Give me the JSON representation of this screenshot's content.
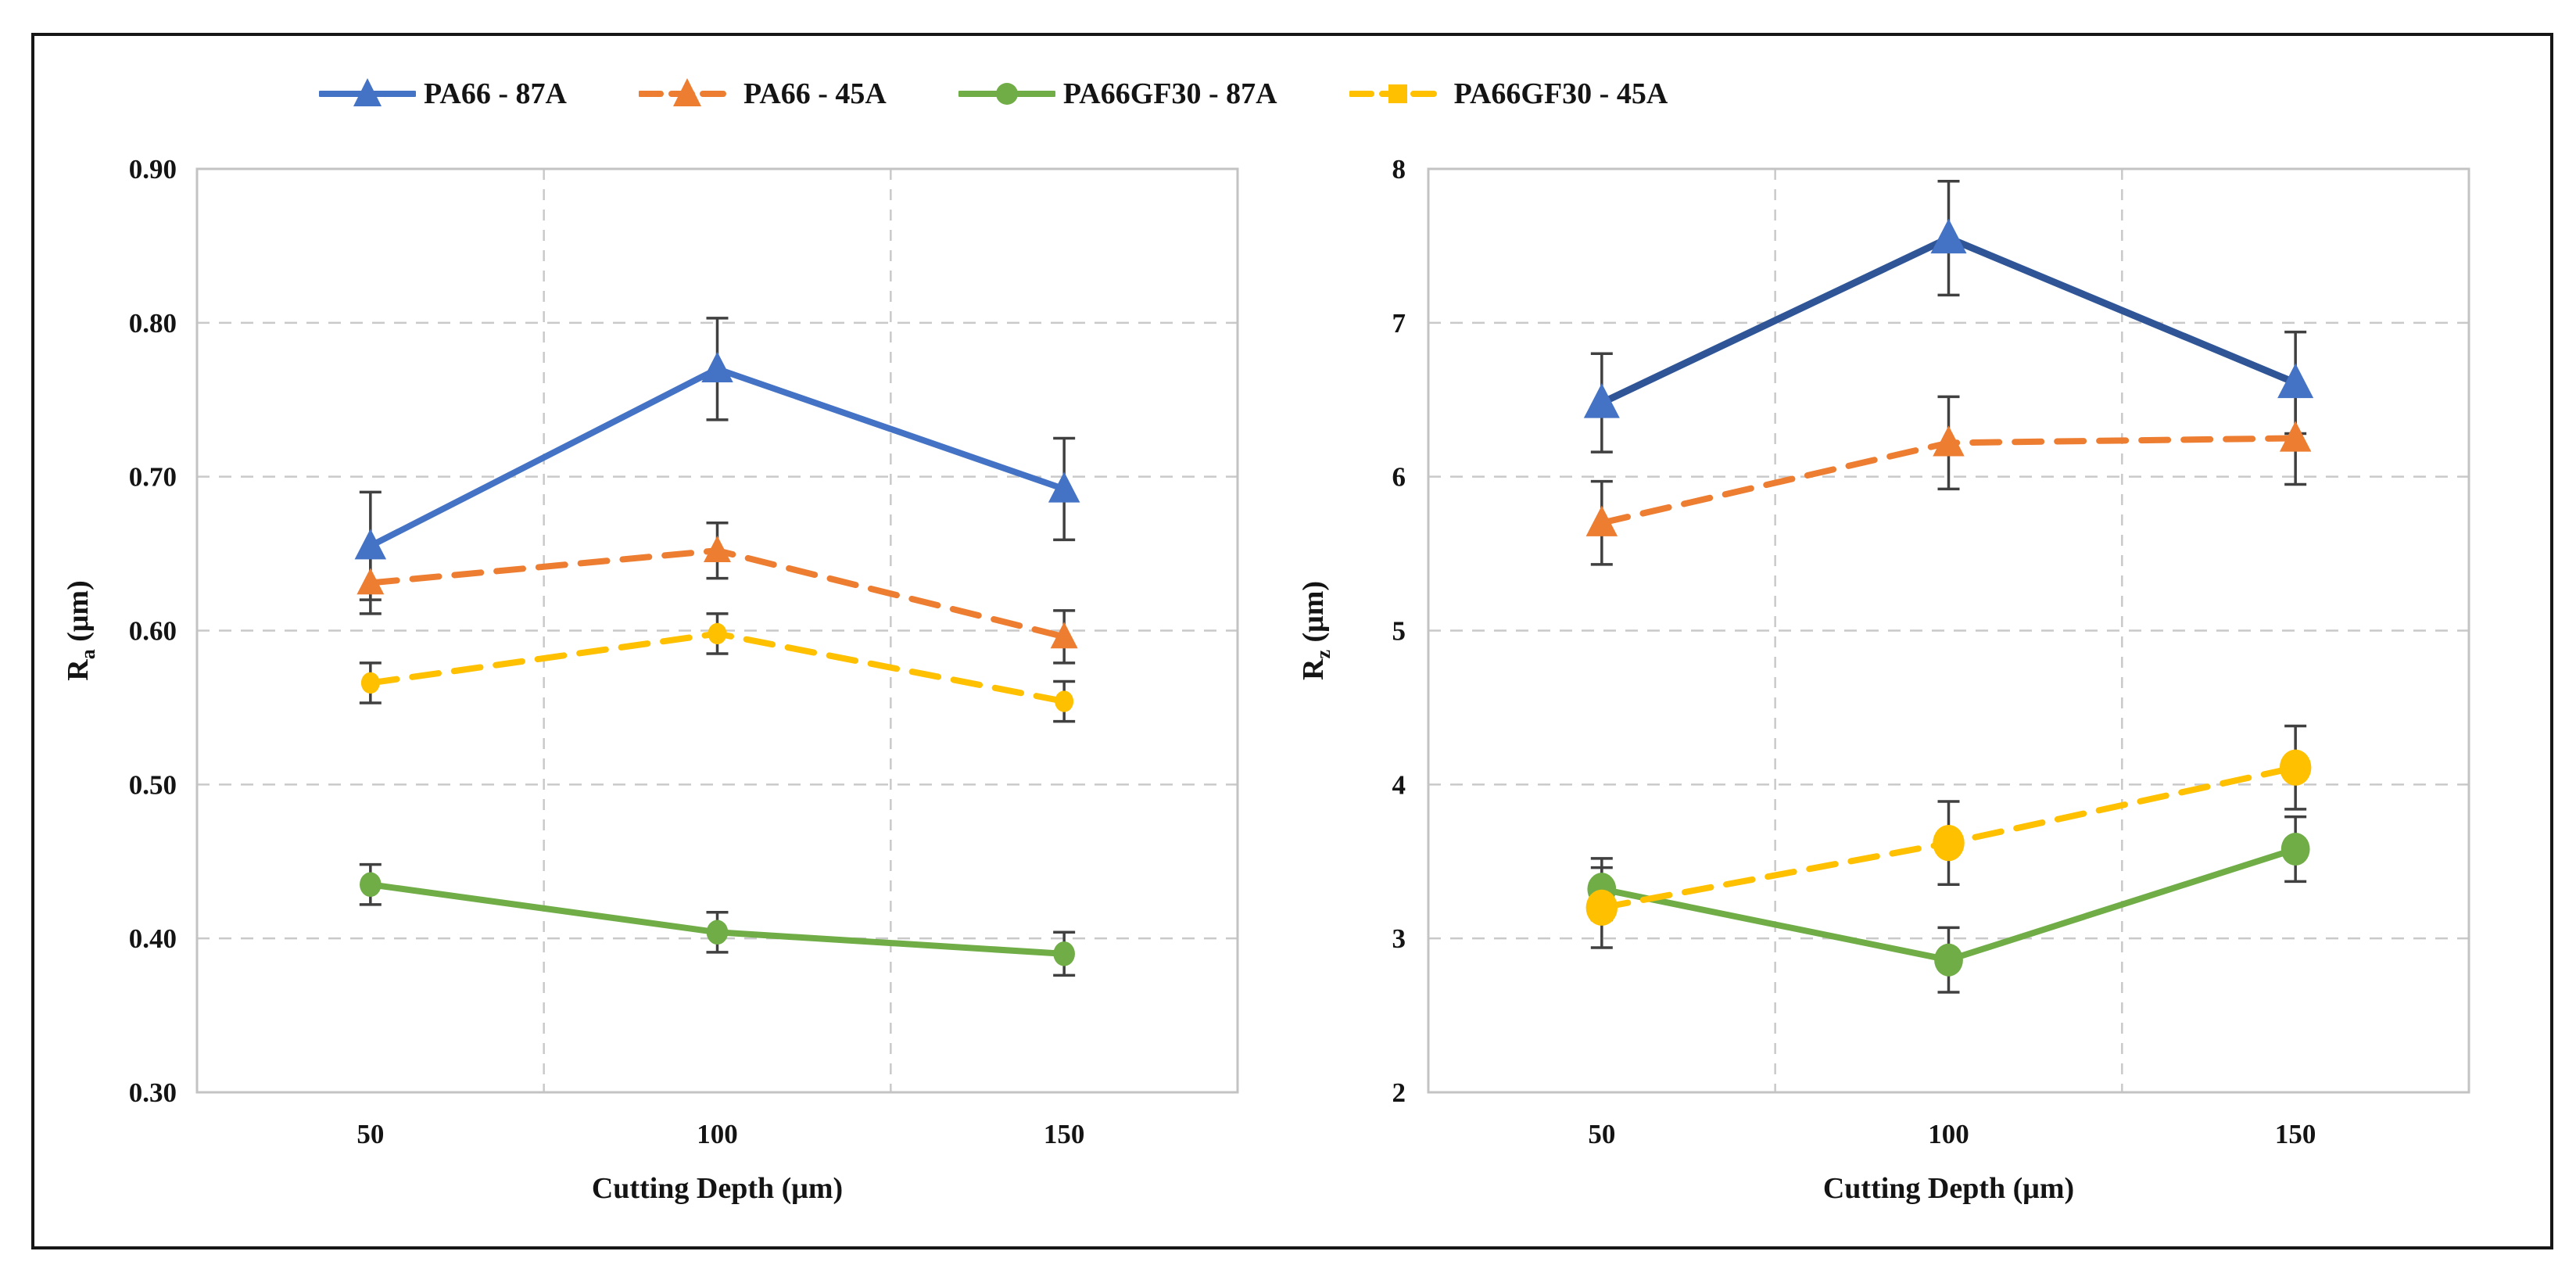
{
  "legend": {
    "items": [
      {
        "label": "PA66 - 87A"
      },
      {
        "label": "PA66 - 45A"
      },
      {
        "label": "PA66GF30 - 87A"
      },
      {
        "label": "PA66GF30 - 45A"
      }
    ]
  },
  "colors": {
    "blue": "#4472C4",
    "blue_dark": "#2F5597",
    "orange": "#ED7D31",
    "green": "#70AD47",
    "yellow": "#FFC000",
    "error_bar": "#404040",
    "gridline": "#c9c9c9",
    "plot_frame": "#c3c3c3",
    "text": "#141414"
  },
  "chart_data": [
    {
      "type": "line",
      "title": "",
      "categories": [
        "50",
        "100",
        "150"
      ],
      "xlabel": "Cutting Depth (μm)",
      "ylabel": {
        "base": "R",
        "sub": "a",
        "unit": " (μm)"
      },
      "ylim": [
        0.3,
        0.9
      ],
      "grid": "dashed",
      "legend_position": "top",
      "yticks": [
        {
          "value": 0.9,
          "label": "0.90"
        },
        {
          "value": 0.8,
          "label": "0.80"
        },
        {
          "value": 0.7,
          "label": "0.70"
        },
        {
          "value": 0.6,
          "label": "0.60"
        },
        {
          "value": 0.5,
          "label": "0.50"
        },
        {
          "value": 0.4,
          "label": "0.40"
        },
        {
          "value": 0.3,
          "label": "0.30"
        }
      ],
      "series": [
        {
          "name": "PA66 - 87A",
          "color": "#4472C4",
          "line_style": "solid",
          "line_width": 8,
          "marker": "triangle",
          "marker_size": 22,
          "values": [
            0.655,
            0.77,
            0.692
          ],
          "errors": [
            0.035,
            0.033,
            0.033
          ]
        },
        {
          "name": "PA66 - 45A",
          "color": "#ED7D31",
          "line_style": "dashed",
          "line_width": 8,
          "marker": "triangle",
          "marker_size": 19,
          "values": [
            0.631,
            0.652,
            0.596
          ],
          "errors": [
            0.02,
            0.018,
            0.017
          ]
        },
        {
          "name": "PA66GF30 - 87A",
          "color": "#70AD47",
          "line_style": "solid",
          "line_width": 8,
          "marker": "circle",
          "marker_size": 15,
          "values": [
            0.435,
            0.404,
            0.39
          ],
          "errors": [
            0.013,
            0.013,
            0.014
          ]
        },
        {
          "name": "PA66GF30 - 45A",
          "color": "#FFC000",
          "line_style": "dashed",
          "line_width": 8,
          "marker": "circle",
          "marker_size": 13,
          "legend_marker": "square",
          "values": [
            0.566,
            0.598,
            0.554
          ],
          "errors": [
            0.013,
            0.013,
            0.013
          ]
        }
      ]
    },
    {
      "type": "line",
      "title": "",
      "categories": [
        "50",
        "100",
        "150"
      ],
      "xlabel": "Cutting Depth (μm)",
      "ylabel": {
        "base": "R",
        "sub": "z",
        "unit": " (μm)"
      },
      "ylim": [
        2,
        8
      ],
      "grid": "dashed",
      "legend_position": "top",
      "yticks": [
        {
          "value": 8,
          "label": "8"
        },
        {
          "value": 7,
          "label": "7"
        },
        {
          "value": 6,
          "label": "6"
        },
        {
          "value": 5,
          "label": "5"
        },
        {
          "value": 4,
          "label": "4"
        },
        {
          "value": 3,
          "label": "3"
        },
        {
          "value": 2,
          "label": "2"
        }
      ],
      "series": [
        {
          "name": "PA66 - 87A",
          "color": "#2F5597",
          "marker_color": "#4472C4",
          "line_style": "solid",
          "line_width": 9,
          "marker": "triangle",
          "marker_size": 25,
          "values": [
            6.48,
            7.55,
            6.61
          ],
          "errors": [
            0.32,
            0.37,
            0.33
          ]
        },
        {
          "name": "PA66 - 45A",
          "color": "#ED7D31",
          "line_style": "dashed",
          "line_width": 8,
          "marker": "triangle",
          "marker_size": 22,
          "values": [
            5.7,
            6.22,
            6.25
          ],
          "errors": [
            0.27,
            0.3,
            0.3
          ]
        },
        {
          "name": "PA66GF30 - 87A",
          "color": "#70AD47",
          "line_style": "solid",
          "line_width": 8,
          "marker": "circle",
          "marker_size": 20,
          "values": [
            3.32,
            2.86,
            3.58
          ],
          "errors": [
            0.2,
            0.21,
            0.21
          ]
        },
        {
          "name": "PA66GF30 - 45A",
          "color": "#FFC000",
          "line_style": "dashed",
          "line_width": 8,
          "marker": "circle",
          "marker_size": 22,
          "values": [
            3.2,
            3.62,
            4.11
          ],
          "errors": [
            0.26,
            0.27,
            0.27
          ]
        }
      ]
    }
  ]
}
